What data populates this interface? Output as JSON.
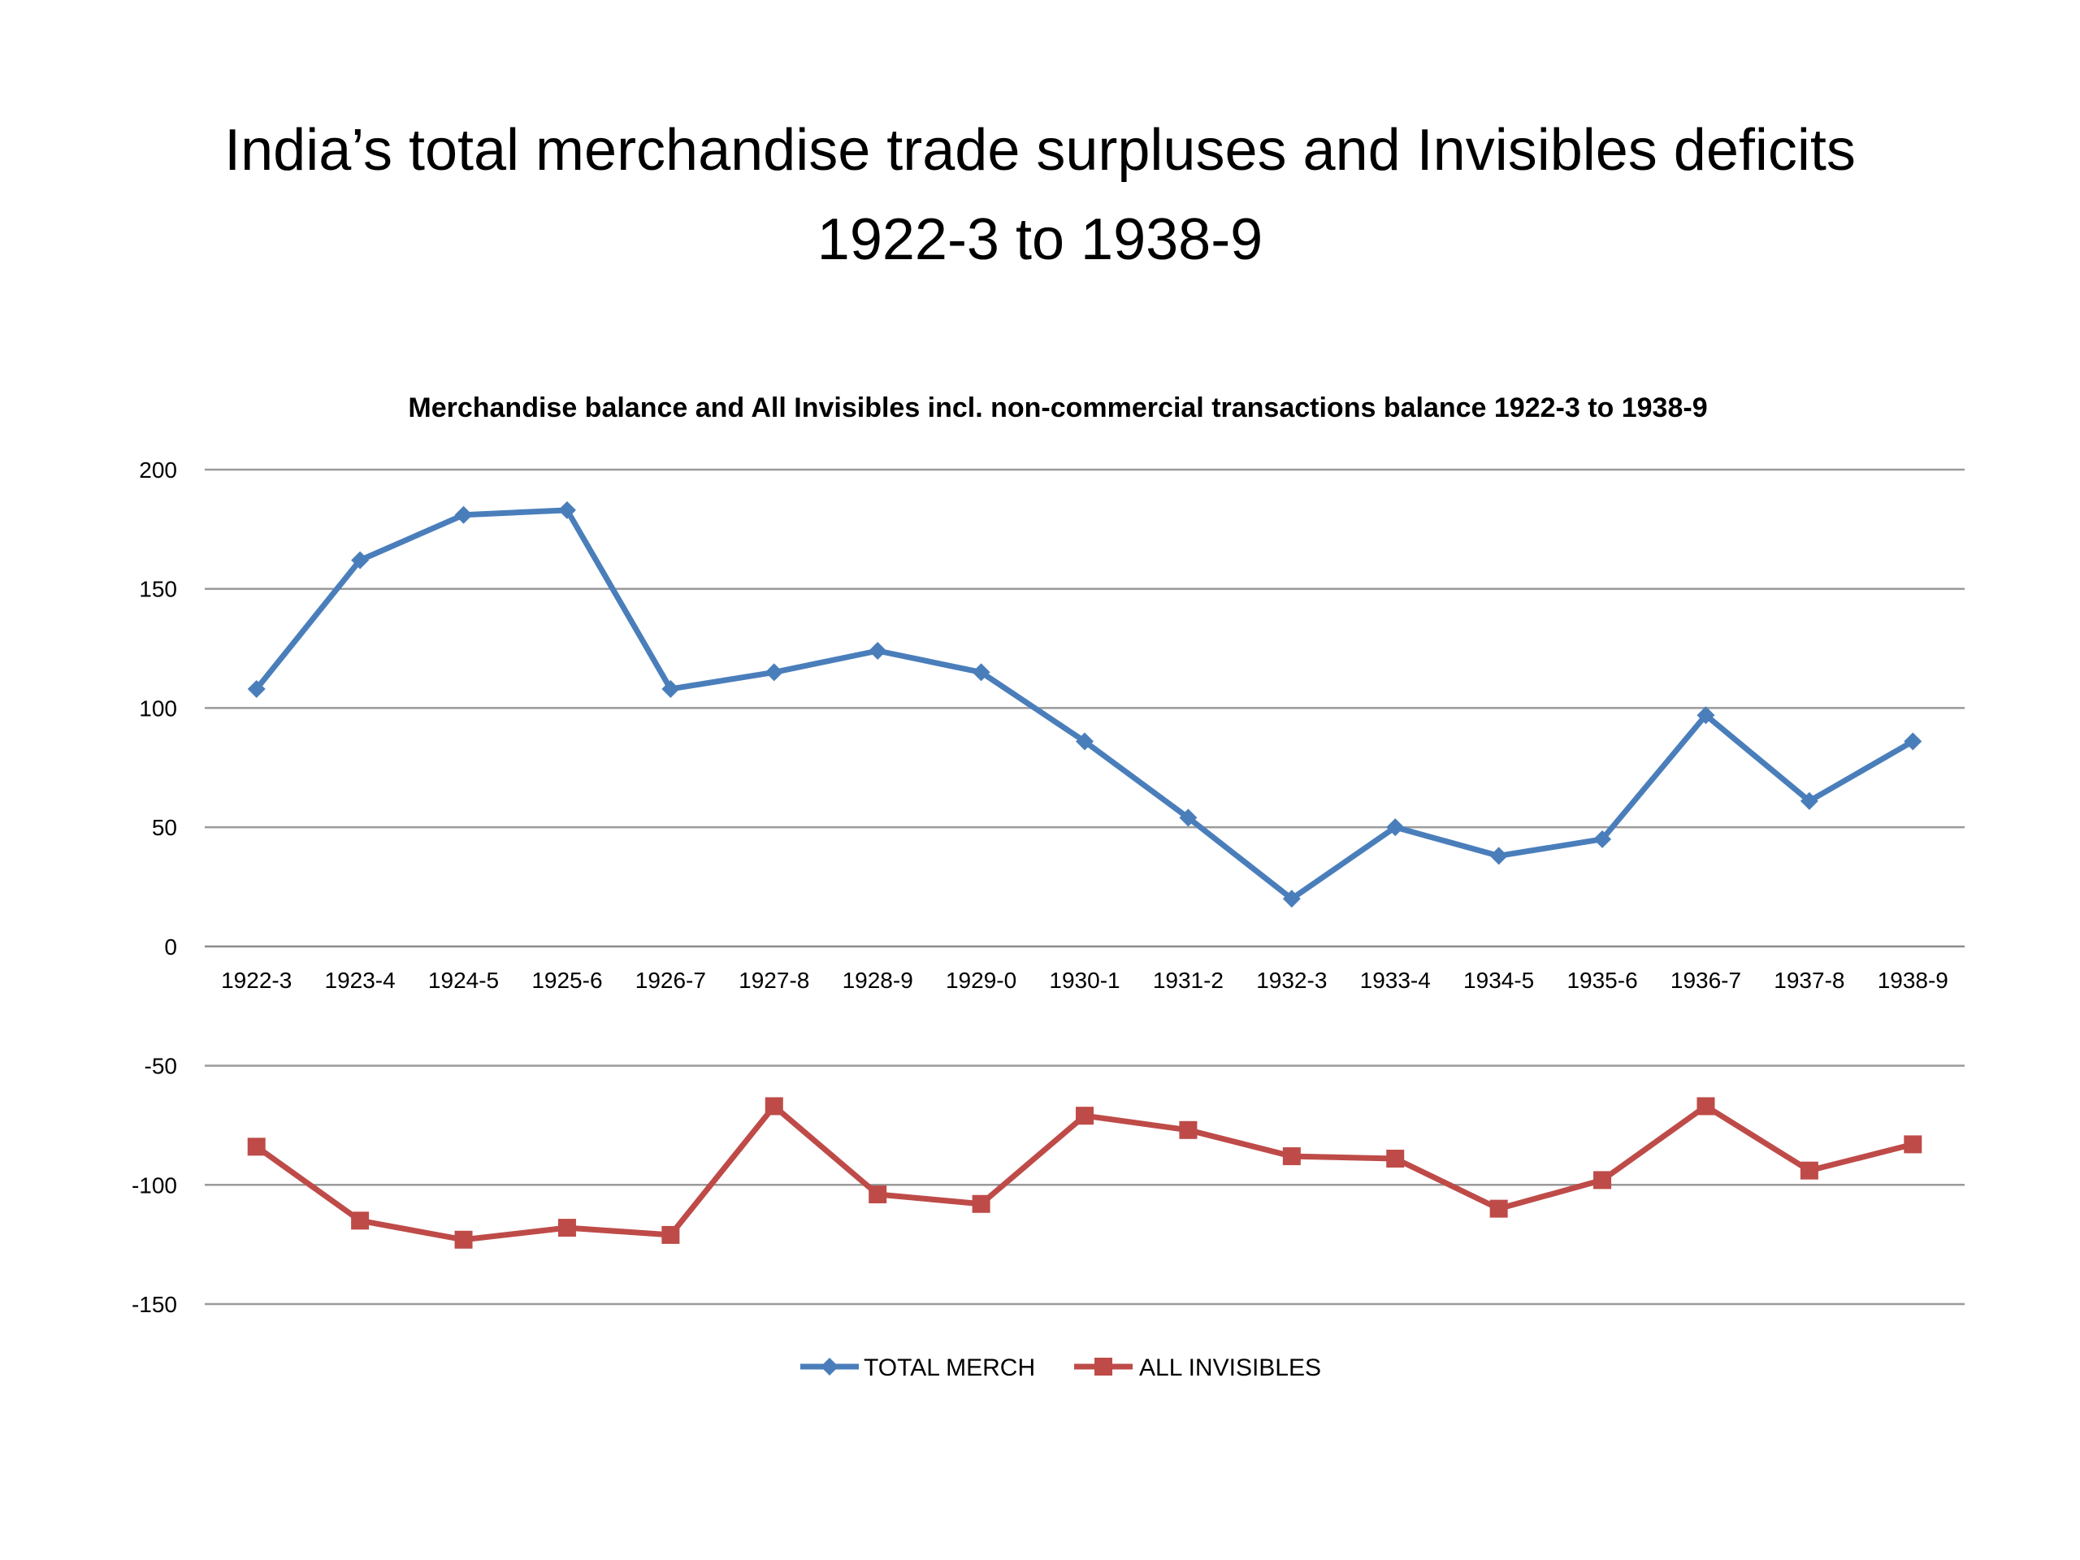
{
  "slide": {
    "title_line1": "India’s total merchandise trade surpluses and Invisibles deficits",
    "title_line2": "1922-3 to 1938-9"
  },
  "chart_data": {
    "type": "line",
    "title": "Merchandise balance and All Invisibles incl. non-commercial transactions balance 1922-3 to 1938-9",
    "xlabel": "",
    "ylabel": "",
    "ylim": [
      -150,
      200
    ],
    "yticks": [
      200,
      150,
      100,
      50,
      0,
      -50,
      -100,
      -150
    ],
    "grid": true,
    "legend_position": "bottom",
    "categories": [
      "1922-3",
      "1923-4",
      "1924-5",
      "1925-6",
      "1926-7",
      "1927-8",
      "1928-9",
      "1929-0",
      "1930-1",
      "1931-2",
      "1932-3",
      "1933-4",
      "1934-5",
      "1935-6",
      "1936-7",
      "1937-8",
      "1938-9"
    ],
    "series": [
      {
        "name": "TOTAL MERCH",
        "color": "#4a7ebb",
        "marker": "diamond",
        "values": [
          108,
          162,
          181,
          183,
          108,
          115,
          124,
          115,
          86,
          54,
          20,
          50,
          38,
          45,
          97,
          61,
          86
        ]
      },
      {
        "name": "ALL INVISIBLES",
        "color": "#be4b48",
        "marker": "square",
        "values": [
          -84,
          -115,
          -123,
          -118,
          -121,
          -67,
          -104,
          -108,
          -71,
          -77,
          -88,
          -89,
          -110,
          -98,
          -67,
          -94,
          -83
        ]
      }
    ]
  }
}
